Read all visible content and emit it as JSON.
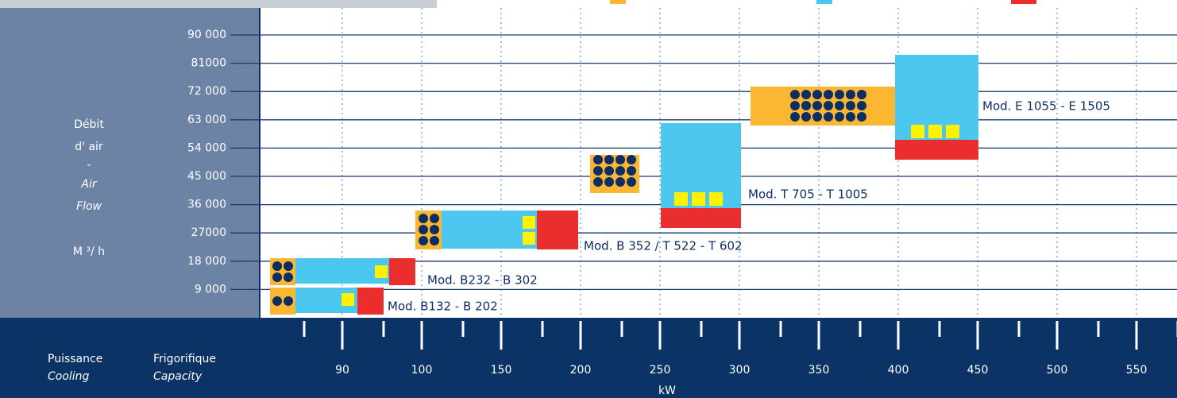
{
  "y_axis": {
    "label_lines": [
      "Débit",
      "d' air",
      "-",
      "Air",
      "Flow",
      "M ³/ h"
    ],
    "ticks": [
      "90 000",
      "81000",
      "72 000",
      "63 000",
      "54 000",
      "45 000",
      "36 000",
      "27000",
      "18 000",
      "9 000"
    ]
  },
  "x_axis": {
    "caption": {
      "fr_1": "Puissance",
      "en_1": "Cooling",
      "fr_2": "Frigorifique",
      "en_2": "Capacity"
    },
    "ticks": [
      "90",
      "100",
      "150",
      "200",
      "250",
      "300",
      "350",
      "400",
      "450",
      "500",
      "550"
    ],
    "unit": "kW"
  },
  "models": [
    "Mod. B132 - B 202",
    "Mod. B232 - B 302",
    "Mod. B 352 / T 522 - T 602",
    "Mod. T 705 - T 1005",
    "Mod. E 1055 - E 1505"
  ]
}
